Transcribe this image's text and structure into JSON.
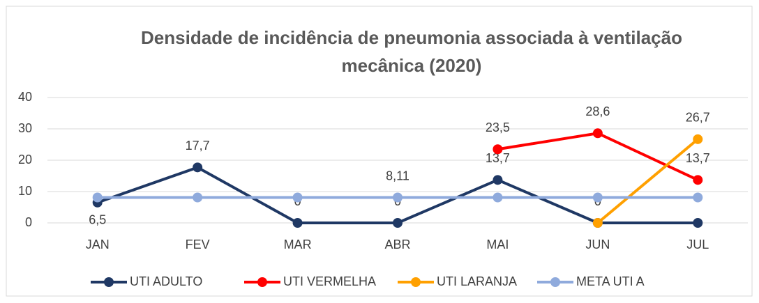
{
  "chart_data": {
    "type": "line",
    "title": "Densidade de incidência de pneumonia associada à ventilação mecânica (2020)",
    "categories": [
      "JAN",
      "FEV",
      "MAR",
      "ABR",
      "MAI",
      "JUN",
      "JUL"
    ],
    "series": [
      {
        "name": "UTI ADULTO",
        "color": "#1f3864",
        "values": [
          6.5,
          17.7,
          0,
          0,
          13.7,
          0,
          0
        ],
        "value_labels": [
          "6,5",
          "17,7",
          "0",
          "0",
          "13,7",
          null,
          null
        ]
      },
      {
        "name": "UTI VERMELHA",
        "color": "#ff0000",
        "values": [
          null,
          null,
          null,
          null,
          23.5,
          28.6,
          13.7
        ],
        "value_labels": [
          null,
          null,
          null,
          null,
          "23,5",
          "28,6",
          "13,7"
        ]
      },
      {
        "name": "UTI LARANJA",
        "color": "#ffa000",
        "values": [
          null,
          null,
          null,
          null,
          null,
          0,
          26.7
        ],
        "value_labels": [
          null,
          null,
          null,
          null,
          null,
          "0",
          "26,7"
        ]
      },
      {
        "name": "META UTI A",
        "color": "#8faadc",
        "values": [
          8.11,
          8.11,
          8.11,
          8.11,
          8.11,
          8.11,
          8.11
        ],
        "value_labels": [
          null,
          null,
          null,
          "8,11",
          null,
          null,
          null
        ]
      }
    ],
    "ylim": [
      0,
      40
    ],
    "yticks": [
      0,
      10,
      20,
      30,
      40
    ],
    "grid": true,
    "legend": "bottom"
  }
}
